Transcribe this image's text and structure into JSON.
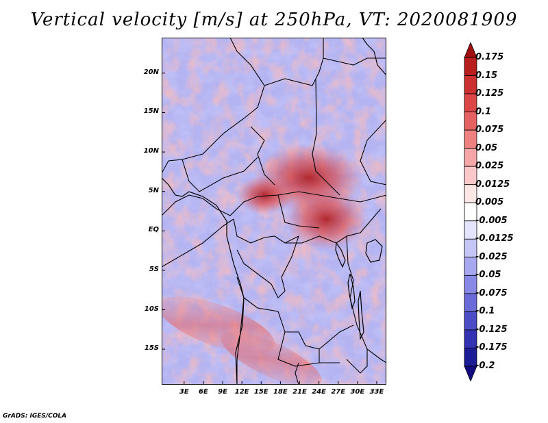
{
  "title": "Vertical velocity [m/s] at 250hPa, VT: 2020081909",
  "footer": "GrADS: IGES/COLA",
  "chart_data": {
    "type": "heatmap",
    "title": "Vertical velocity [m/s] at 250hPa, VT: 2020081909",
    "variable": "Vertical velocity",
    "units": "m/s",
    "level": "250hPa",
    "valid_time": "2020081909",
    "lat_ticks": [
      "20N",
      "15N",
      "10N",
      "5N",
      "EQ",
      "5S",
      "10S",
      "15S"
    ],
    "lon_ticks": [
      "3E",
      "6E",
      "9E",
      "12E",
      "15E",
      "18E",
      "21E",
      "24E",
      "27E",
      "30E",
      "33E"
    ],
    "lat_range": [
      -19.5,
      24.5
    ],
    "lon_range": [
      -0.5,
      34.5
    ],
    "colorbar_levels": [
      "0.175",
      "0.15",
      "0.125",
      "0.1",
      "0.075",
      "0.05",
      "0.025",
      "0.0125",
      "0.005",
      "-0.005",
      "-0.0125",
      "-0.025",
      "-0.05",
      "-0.075",
      "-0.1",
      "-0.125",
      "-0.175",
      "-0.2"
    ],
    "colorbar_colors": [
      "#a01010",
      "#b81e1e",
      "#cc3030",
      "#dc4646",
      "#e66262",
      "#ee8080",
      "#f5a6a6",
      "#fac8c8",
      "#fde6e6",
      "#ffffff",
      "#e4e4fc",
      "#c6c6f6",
      "#a8a8f0",
      "#8888e6",
      "#6a6ad8",
      "#4c4cc6",
      "#3232b2",
      "#1c1c96",
      "#120a80"
    ]
  }
}
